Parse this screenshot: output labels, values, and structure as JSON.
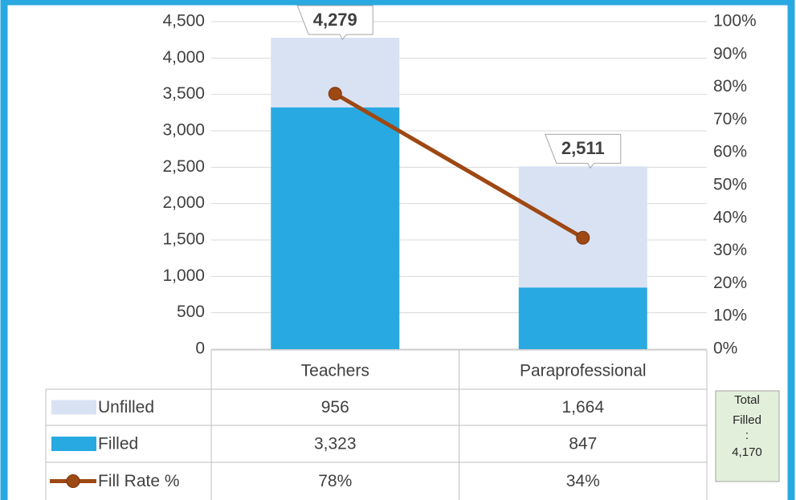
{
  "chart_data": {
    "type": "bar",
    "stacked": true,
    "categories": [
      "Teachers",
      "Paraprofessional"
    ],
    "series": [
      {
        "name": "Unfilled",
        "color": "#d9e2f3",
        "values": [
          956,
          1664
        ],
        "value_labels": [
          "956",
          "1,664"
        ]
      },
      {
        "name": "Filled",
        "color": "#29a9e1",
        "values": [
          3323,
          847
        ],
        "value_labels": [
          "3,323",
          "847"
        ]
      },
      {
        "name": "Fill Rate %",
        "type": "line",
        "axis": "y2",
        "color": "#9e4813",
        "values": [
          78,
          34
        ],
        "value_labels": [
          "78%",
          "34%"
        ]
      }
    ],
    "total_labels": [
      "4,279",
      "2,511"
    ],
    "ylim": [
      0,
      4500
    ],
    "yticks": [
      0,
      500,
      {
        "value": 1000,
        "label": "1,000"
      },
      {
        "value": 1500,
        "label": "1,500"
      },
      {
        "value": 2000,
        "label": "2,000"
      },
      {
        "value": 2500,
        "label": "2,500"
      },
      {
        "value": 3000,
        "label": "3,000"
      },
      {
        "value": 3500,
        "label": "3,500"
      },
      {
        "value": 4000,
        "label": "4,000"
      },
      {
        "value": 4500,
        "label": "4,500"
      }
    ],
    "y2lim": [
      0,
      100
    ],
    "y2ticks": [
      {
        "value": 0,
        "label": "0%"
      },
      {
        "value": 10,
        "label": "10%"
      },
      {
        "value": 20,
        "label": "20%"
      },
      {
        "value": 30,
        "label": "30%"
      },
      {
        "value": 40,
        "label": "40%"
      },
      {
        "value": 50,
        "label": "50%"
      },
      {
        "value": 60,
        "label": "60%"
      },
      {
        "value": 70,
        "label": "70%"
      },
      {
        "value": 80,
        "label": "80%"
      },
      {
        "value": 90,
        "label": "90%"
      },
      {
        "value": 100,
        "label": "100%"
      }
    ],
    "grid": true,
    "annotation": [
      "Total",
      "Filled",
      ":",
      "4,170"
    ]
  }
}
